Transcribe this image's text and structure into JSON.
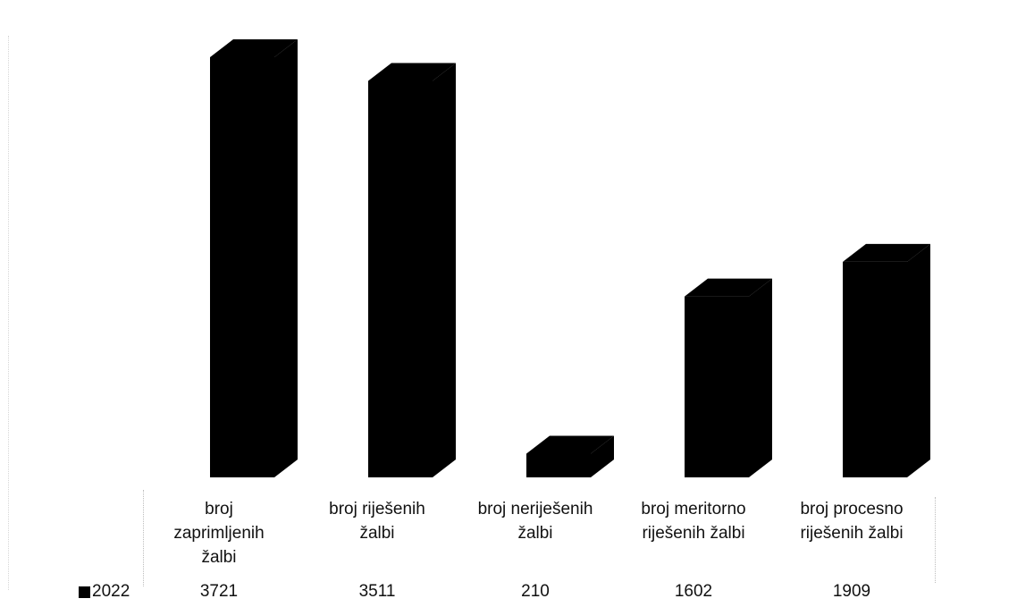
{
  "chart_data": {
    "type": "bar",
    "style": "3d-column",
    "categories": [
      "broj zaprimljenih žalbi",
      "broj riješenih žalbi",
      "broj neriješenih žalbi",
      "broj meritorno riješenih žalbi",
      "broj procesno riješenih žalbi"
    ],
    "category_lines": [
      [
        "broj",
        "zaprimljenih",
        "žalbi"
      ],
      [
        "broj riješenih",
        "žalbi"
      ],
      [
        "broj neriješenih",
        "žalbi"
      ],
      [
        "broj meritorno",
        "riješenih žalbi"
      ],
      [
        "broj procesno",
        "riješenih žalbi"
      ]
    ],
    "series": [
      {
        "name": "2022",
        "values": [
          3721,
          3511,
          210,
          1602,
          1909
        ],
        "color": "#000000"
      }
    ],
    "value_labels": [
      "3721",
      "3511",
      "210",
      "1602",
      "1909"
    ],
    "ylim": [
      0,
      3721
    ],
    "grid": false,
    "legend": "bottom-left data table"
  }
}
